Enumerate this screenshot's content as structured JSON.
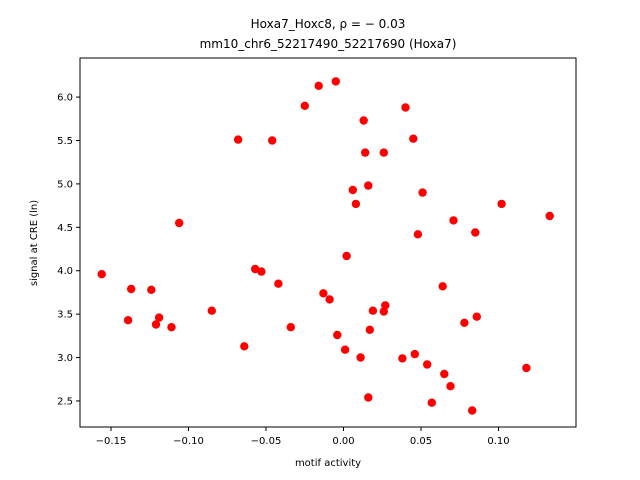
{
  "chart_data": {
    "type": "scatter",
    "title_line1": "Hoxa7_Hoxc8, ρ = − 0.03",
    "title_line2": "mm10_chr6_52217490_52217690 (Hoxa7)",
    "xlabel": "motif activity",
    "ylabel": "signal at CRE (ln)",
    "xlim": [
      -0.17,
      0.15
    ],
    "ylim": [
      2.2,
      6.45
    ],
    "xticks": [
      "−0.15",
      "−0.10",
      "−0.05",
      "0.00",
      "0.05",
      "0.10"
    ],
    "xtick_values": [
      -0.15,
      -0.1,
      -0.05,
      0.0,
      0.05,
      0.1
    ],
    "yticks": [
      "2.5",
      "3.0",
      "3.5",
      "4.0",
      "4.5",
      "5.0",
      "5.5",
      "6.0"
    ],
    "ytick_values": [
      2.5,
      3.0,
      3.5,
      4.0,
      4.5,
      5.0,
      5.5,
      6.0
    ],
    "marker_color": "#ff0000",
    "grid": false,
    "points": [
      {
        "x": -0.156,
        "y": 3.96
      },
      {
        "x": -0.139,
        "y": 3.43
      },
      {
        "x": -0.137,
        "y": 3.79
      },
      {
        "x": -0.124,
        "y": 3.78
      },
      {
        "x": -0.121,
        "y": 3.38
      },
      {
        "x": -0.119,
        "y": 3.46
      },
      {
        "x": -0.111,
        "y": 3.35
      },
      {
        "x": -0.106,
        "y": 4.55
      },
      {
        "x": -0.085,
        "y": 3.54
      },
      {
        "x": -0.068,
        "y": 5.51
      },
      {
        "x": -0.064,
        "y": 3.13
      },
      {
        "x": -0.057,
        "y": 4.02
      },
      {
        "x": -0.053,
        "y": 3.99
      },
      {
        "x": -0.046,
        "y": 5.5
      },
      {
        "x": -0.042,
        "y": 3.85
      },
      {
        "x": -0.034,
        "y": 3.35
      },
      {
        "x": -0.025,
        "y": 5.9
      },
      {
        "x": -0.016,
        "y": 6.13
      },
      {
        "x": -0.013,
        "y": 3.74
      },
      {
        "x": -0.009,
        "y": 3.67
      },
      {
        "x": -0.005,
        "y": 6.18
      },
      {
        "x": -0.004,
        "y": 3.26
      },
      {
        "x": 0.001,
        "y": 3.09
      },
      {
        "x": 0.002,
        "y": 4.17
      },
      {
        "x": 0.006,
        "y": 4.93
      },
      {
        "x": 0.008,
        "y": 4.77
      },
      {
        "x": 0.011,
        "y": 3.0
      },
      {
        "x": 0.013,
        "y": 5.73
      },
      {
        "x": 0.014,
        "y": 5.36
      },
      {
        "x": 0.016,
        "y": 4.98
      },
      {
        "x": 0.016,
        "y": 2.54
      },
      {
        "x": 0.017,
        "y": 3.32
      },
      {
        "x": 0.019,
        "y": 3.54
      },
      {
        "x": 0.026,
        "y": 5.36
      },
      {
        "x": 0.026,
        "y": 3.53
      },
      {
        "x": 0.027,
        "y": 3.6
      },
      {
        "x": 0.038,
        "y": 2.99
      },
      {
        "x": 0.04,
        "y": 5.88
      },
      {
        "x": 0.045,
        "y": 5.52
      },
      {
        "x": 0.046,
        "y": 3.04
      },
      {
        "x": 0.048,
        "y": 4.42
      },
      {
        "x": 0.051,
        "y": 4.9
      },
      {
        "x": 0.054,
        "y": 2.92
      },
      {
        "x": 0.057,
        "y": 2.48
      },
      {
        "x": 0.064,
        "y": 3.82
      },
      {
        "x": 0.065,
        "y": 2.81
      },
      {
        "x": 0.069,
        "y": 2.67
      },
      {
        "x": 0.071,
        "y": 4.58
      },
      {
        "x": 0.078,
        "y": 3.4
      },
      {
        "x": 0.083,
        "y": 2.39
      },
      {
        "x": 0.085,
        "y": 4.44
      },
      {
        "x": 0.086,
        "y": 3.47
      },
      {
        "x": 0.102,
        "y": 4.77
      },
      {
        "x": 0.118,
        "y": 2.88
      },
      {
        "x": 0.133,
        "y": 4.63
      }
    ]
  }
}
